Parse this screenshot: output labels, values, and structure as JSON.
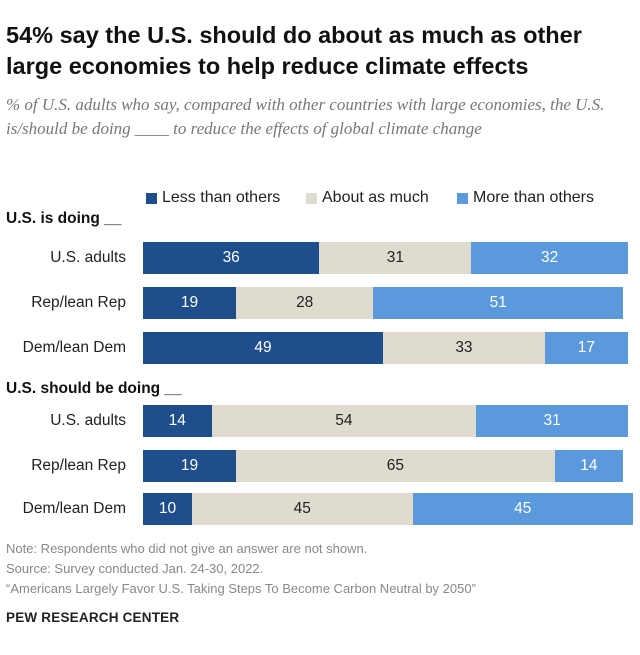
{
  "header": {
    "title": "54% say the U.S. should do about as much as other large economies to help reduce climate effects",
    "subtitle": "% of U.S. adults who say, compared with other countries with large economies, the U.S. is/should be doing ____ to reduce the effects of global climate change"
  },
  "colors": {
    "less": "#1f4e8c",
    "about": "#e0dbcf",
    "more": "#5a99dc"
  },
  "chart_data": {
    "type": "bar",
    "orientation": "horizontal",
    "stacked": true,
    "legend_position": "top",
    "legend": [
      "Less than others",
      "About as much",
      "More than others"
    ],
    "groups": [
      {
        "title": "U.S. is doing __",
        "rows": [
          {
            "label": "U.S. adults",
            "values": [
              36,
              31,
              32
            ]
          },
          {
            "label": "Rep/lean Rep",
            "values": [
              19,
              28,
              51
            ]
          },
          {
            "label": "Dem/lean Dem",
            "values": [
              49,
              33,
              17
            ]
          }
        ]
      },
      {
        "title": "U.S. should be doing __",
        "rows": [
          {
            "label": "U.S. adults",
            "values": [
              14,
              54,
              31
            ]
          },
          {
            "label": "Rep/lean Rep",
            "values": [
              19,
              65,
              14
            ]
          },
          {
            "label": "Dem/lean Dem",
            "values": [
              10,
              45,
              45
            ]
          }
        ]
      }
    ],
    "xlim": [
      0,
      100
    ]
  },
  "footer": {
    "note": "Note: Respondents who did not give an answer are not shown.",
    "source": "Source: Survey conducted Jan. 24-30, 2022.",
    "report": "“Americans Largely Favor U.S. Taking Steps To Become Carbon Neutral by 2050”",
    "brand": "PEW RESEARCH CENTER"
  }
}
